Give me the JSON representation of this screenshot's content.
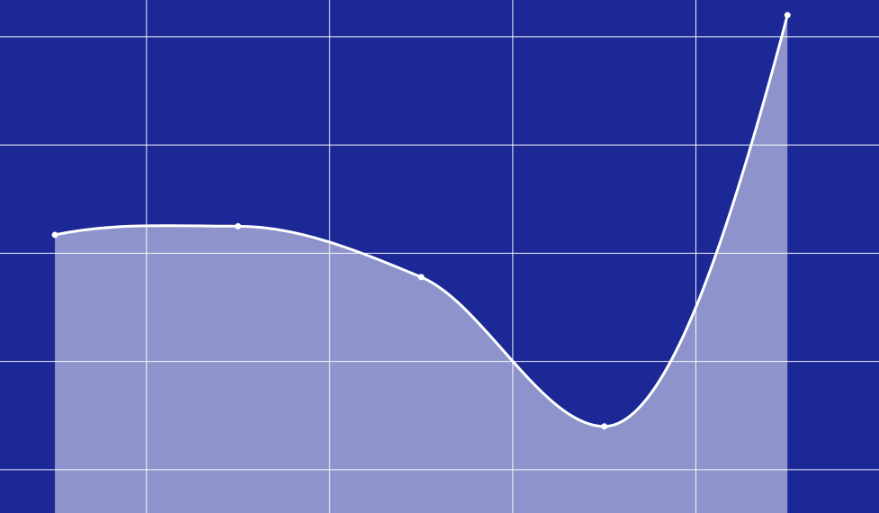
{
  "chart_data": {
    "type": "area",
    "curve": "smooth",
    "grid": true,
    "legend": "none",
    "points": [
      {
        "x": 0,
        "y": 2.17
      },
      {
        "x": 1,
        "y": 2.25
      },
      {
        "x": 2,
        "y": 1.78
      },
      {
        "x": 3,
        "y": 0.4
      },
      {
        "x": 4,
        "y": 4.2
      }
    ],
    "xlim": [
      -0.3,
      4.5
    ],
    "ylim": [
      -0.4,
      4.34
    ],
    "x_gridlines": [
      0.5,
      1.5,
      2.5,
      3.5
    ],
    "y_gridlines": [
      0,
      1,
      2,
      3,
      4
    ],
    "colors": {
      "background": "#1c2896",
      "line": "#ffffff",
      "area": "#ffffff",
      "grid": "#ffffff"
    }
  }
}
